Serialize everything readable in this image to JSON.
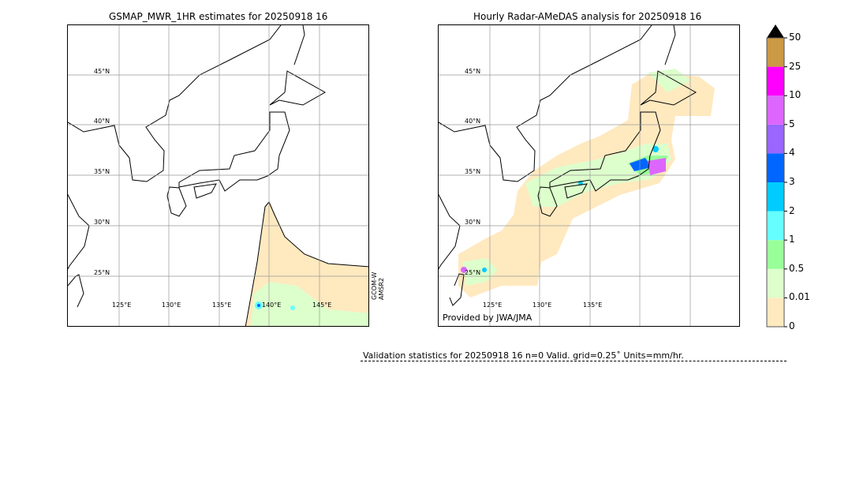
{
  "left_map": {
    "title": "GSMAP_MWR_1HR estimates for 20250918 16",
    "lat_labels": [
      "45°N",
      "40°N",
      "35°N",
      "30°N",
      "25°N"
    ],
    "lon_labels": [
      "125°E",
      "130°E",
      "135°E",
      "140°E",
      "145°E"
    ],
    "satellite_label_1": "GCOM-W",
    "satellite_label_2": "AMSR2"
  },
  "right_map": {
    "title": "Hourly Radar-AMeDAS analysis for 20250918 16",
    "lat_labels": [
      "45°N",
      "40°N",
      "35°N",
      "30°N",
      "25°N"
    ],
    "lon_labels": [
      "125°E",
      "130°E",
      "135°E"
    ],
    "credit": "Provided by JWA/JMA"
  },
  "colorbar": {
    "ticks": [
      "0",
      "0.01",
      "0.5",
      "1",
      "2",
      "3",
      "4",
      "5",
      "10",
      "25",
      "50"
    ],
    "colors": [
      "#ffe9bf",
      "#ddffcc",
      "#99ff99",
      "#66ffff",
      "#00ccff",
      "#0066ff",
      "#9966ff",
      "#dd66ff",
      "#ff00ff",
      "#cc9944"
    ],
    "extend_color": "#000000"
  },
  "footer": {
    "validation_text": "Validation statistics for 20250918 16  n=0 Valid. grid=0.25˚ Units=mm/hr."
  }
}
